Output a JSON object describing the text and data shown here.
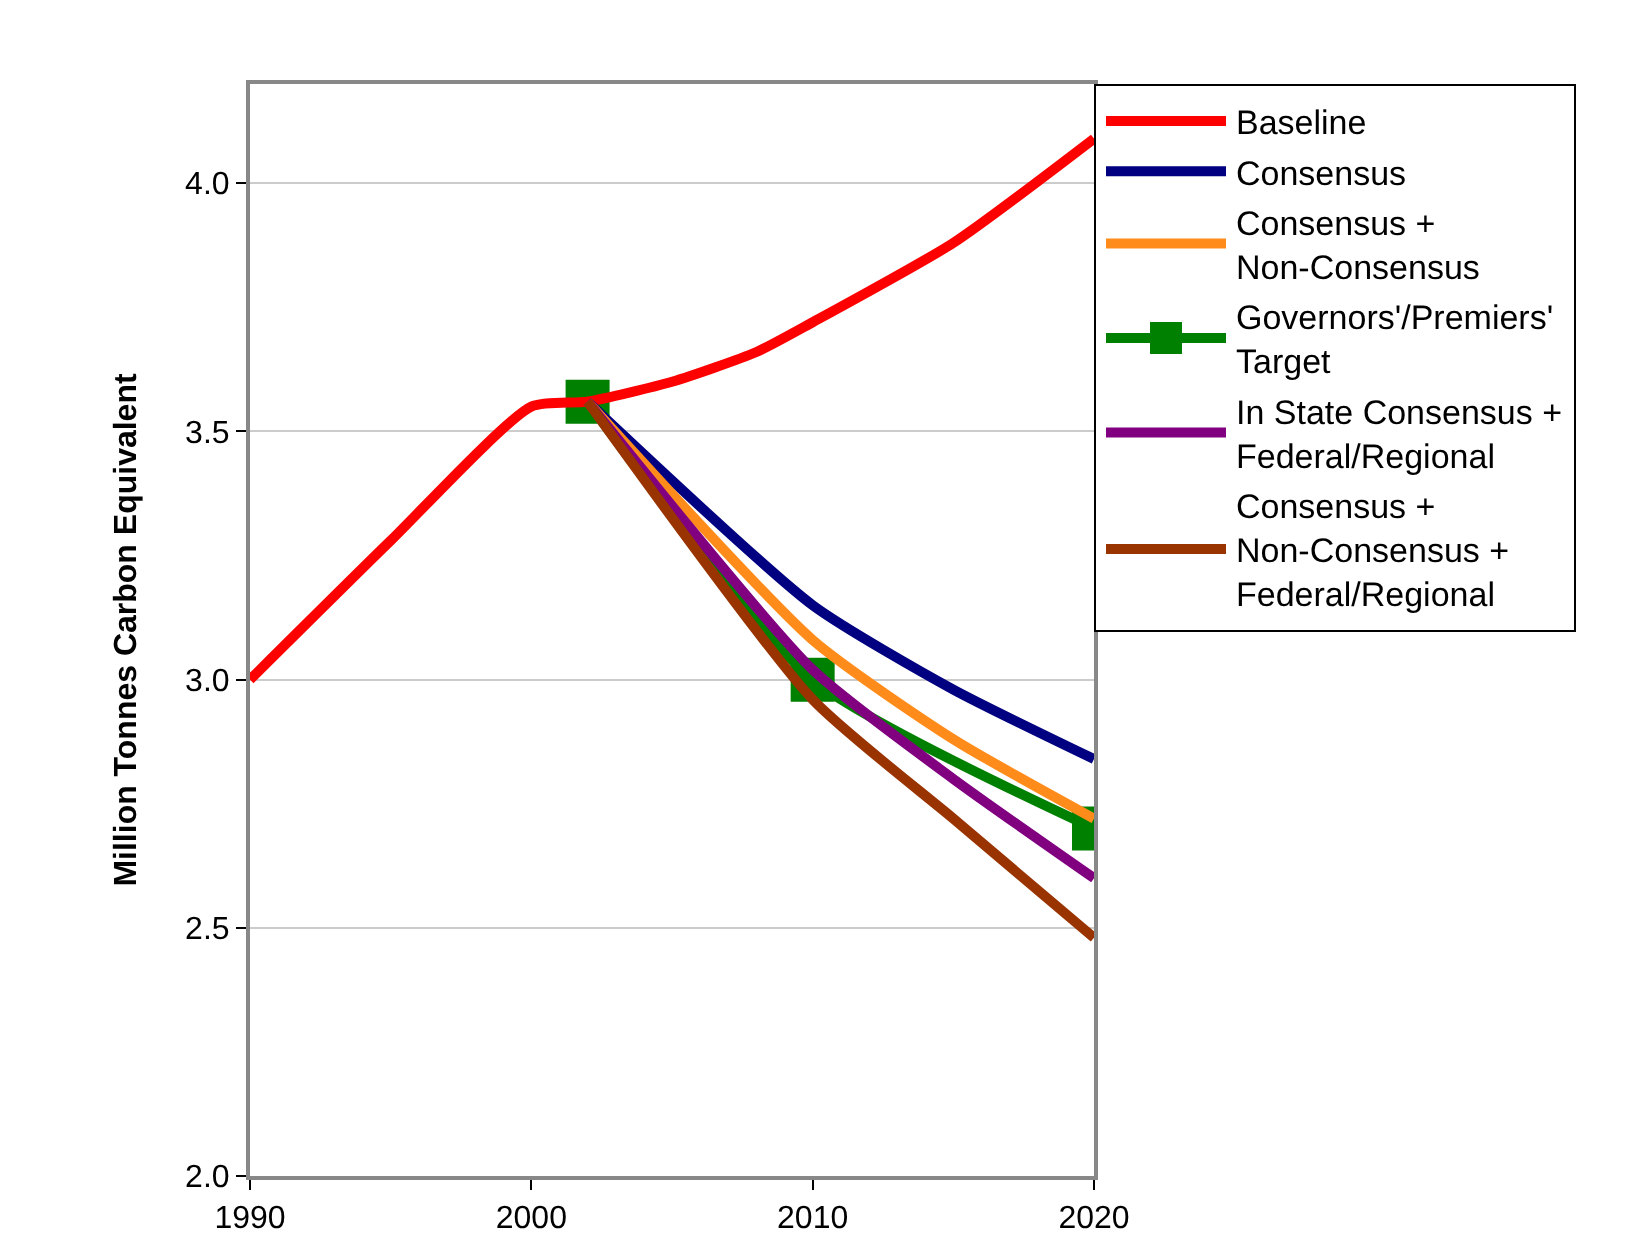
{
  "chart_data": {
    "type": "line",
    "ylabel": "Million Tonnes Carbon Equivalent",
    "ylim": [
      2.0,
      4.2
    ],
    "yticks": [
      {
        "value": 2.0,
        "label": "2.0"
      },
      {
        "value": 2.5,
        "label": "2.5"
      },
      {
        "value": 3.0,
        "label": "3.0"
      },
      {
        "value": 3.5,
        "label": "3.5"
      },
      {
        "value": 4.0,
        "label": "4.0"
      }
    ],
    "xlim": [
      1990,
      2020
    ],
    "xticks": [
      1990,
      2000,
      2010,
      2020
    ],
    "grid": "y",
    "legend": "right",
    "line_style": "solid",
    "series": [
      {
        "name": "Baseline",
        "color": "#ff0000",
        "x": [
          1990,
          1995,
          2000,
          2002,
          2005,
          2008,
          2010,
          2015,
          2020
        ],
        "values": [
          3.0,
          3.28,
          3.55,
          3.56,
          3.6,
          3.66,
          3.72,
          3.88,
          4.09
        ]
      },
      {
        "name": "Consensus",
        "color": "#000080",
        "x": [
          2002,
          2010,
          2015,
          2020
        ],
        "values": [
          3.56,
          3.15,
          2.98,
          2.84
        ]
      },
      {
        "name": "Consensus + Non-Consensus",
        "color": "#ff8c1a",
        "x": [
          2002,
          2010,
          2015,
          2020
        ],
        "values": [
          3.56,
          3.08,
          2.88,
          2.72
        ]
      },
      {
        "name": "Governors'/Premiers' Target",
        "color": "#008000",
        "marker": "square",
        "x": [
          2002,
          2010,
          2020
        ],
        "values": [
          3.56,
          3.0,
          2.7
        ]
      },
      {
        "name": "In State Consensus + Federal/Regional",
        "color": "#800080",
        "x": [
          2002,
          2010,
          2015,
          2020
        ],
        "values": [
          3.56,
          3.02,
          2.8,
          2.6
        ]
      },
      {
        "name": "Consensus + Non-Consensus + Federal/Regional",
        "color": "#993300",
        "x": [
          2002,
          2010,
          2015,
          2020
        ],
        "values": [
          3.56,
          2.96,
          2.72,
          2.48
        ]
      }
    ]
  }
}
